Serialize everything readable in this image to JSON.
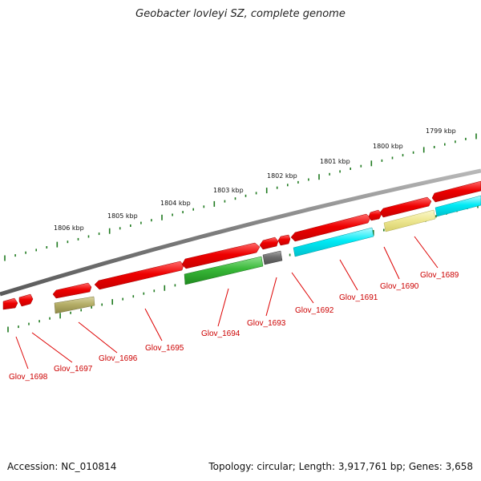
{
  "title": "Geobacter lovleyi SZ, complete genome",
  "footer": {
    "accession": "Accession: NC_010814",
    "topology": "Topology: circular; Length: 3,917,761 bp; Genes: 3,658"
  },
  "colors": {
    "backbone": "#8a8a8a",
    "tick": "#1f7a1f",
    "label": "#cc0000",
    "red_gene": "#e80000",
    "green_gene": "#33b233",
    "cyan_gene": "#00e5f0",
    "yellow_gene": "#ece68a",
    "olive_gene": "#b3ad66",
    "gray_gene": "#6e6e6e"
  },
  "scale": {
    "unit": "kbp",
    "labels": [
      "1806 kbp",
      "1805 kbp",
      "1804 kbp",
      "1803 kbp",
      "1802 kbp",
      "1801 kbp",
      "1800 kbp",
      "1799 kbp"
    ]
  },
  "genes": [
    {
      "name": "Glov_1698",
      "color": "red_gene"
    },
    {
      "name": "Glov_1697",
      "color": "red_gene"
    },
    {
      "name": "Glov_1696",
      "color": "olive_gene"
    },
    {
      "name": "Glov_1695",
      "color": "red_gene"
    },
    {
      "name": "Glov_1694",
      "color": "green_gene"
    },
    {
      "name": "Glov_1693",
      "color": "gray_gene"
    },
    {
      "name": "Glov_1692",
      "color": "red_gene"
    },
    {
      "name": "Glov_1691",
      "color": "cyan_gene"
    },
    {
      "name": "Glov_1690",
      "color": "yellow_gene"
    },
    {
      "name": "Glov_1689",
      "color": "cyan_gene"
    }
  ]
}
